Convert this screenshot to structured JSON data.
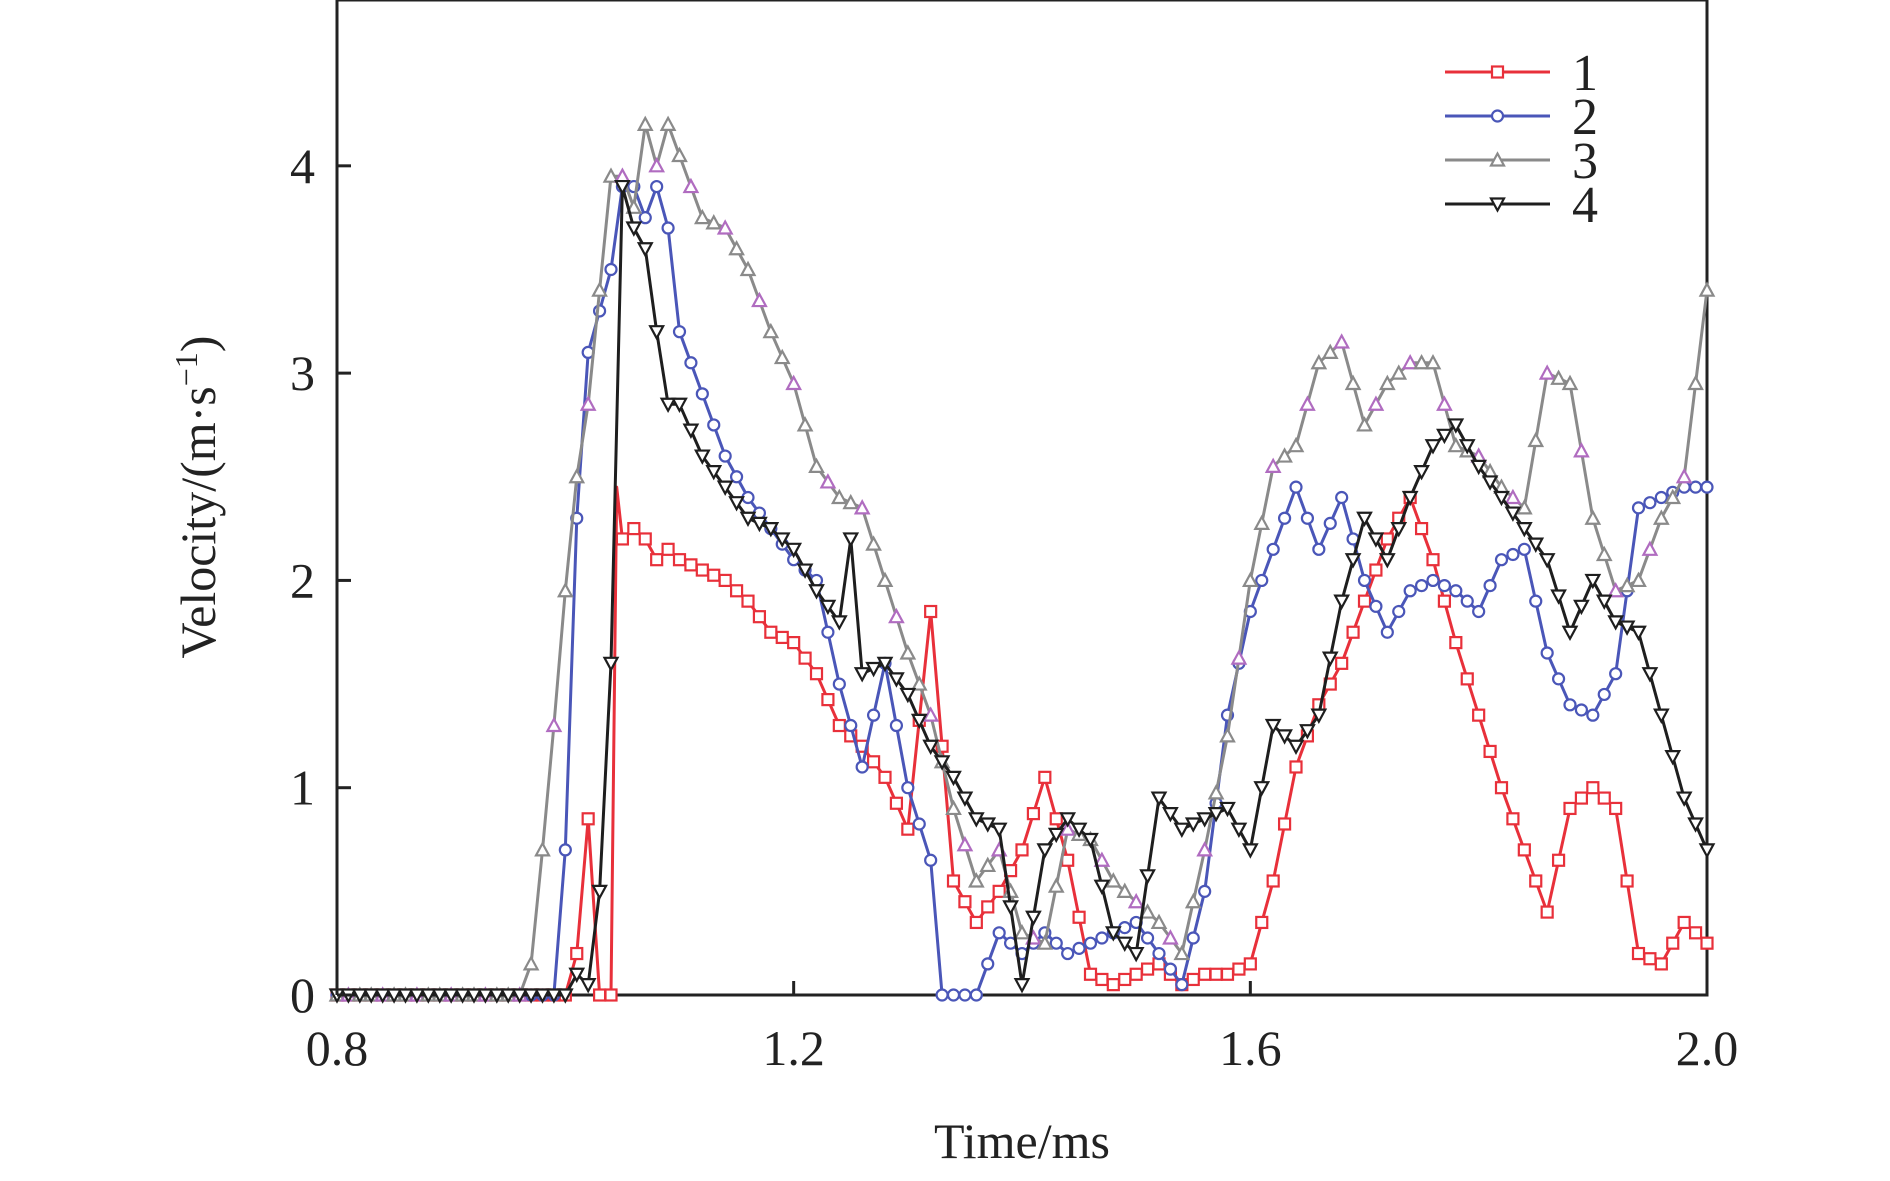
{
  "chart_data": {
    "type": "line",
    "title": "",
    "xlabel": "Time/ms",
    "ylabel_main": "Velocity/(m·s",
    "ylabel_sup": "−1",
    "ylabel_close": ")",
    "xlim": [
      0.8,
      2.0
    ],
    "ylim": [
      0,
      4.8
    ],
    "xticks": [
      0.8,
      1.2,
      1.6,
      2.0
    ],
    "xtick_labels": [
      "0.8",
      "1.2",
      "1.6",
      "2.0"
    ],
    "yticks": [
      0,
      1,
      2,
      3,
      4
    ],
    "ytick_labels": [
      "0",
      "1",
      "2",
      "3",
      "4"
    ],
    "grid": false,
    "legend_position": "top-right",
    "series": [
      {
        "name": "1",
        "color": "#e8303a",
        "marker": "square",
        "x": [
          0.8,
          1.0,
          1.01,
          1.02,
          1.03,
          1.04,
          1.045,
          1.05,
          1.06,
          1.07,
          1.08,
          1.09,
          1.1,
          1.12,
          1.14,
          1.16,
          1.18,
          1.2,
          1.22,
          1.24,
          1.26,
          1.28,
          1.3,
          1.32,
          1.34,
          1.36,
          1.38,
          1.4,
          1.42,
          1.44,
          1.46,
          1.48,
          1.5,
          1.52,
          1.54,
          1.56,
          1.58,
          1.6,
          1.62,
          1.64,
          1.66,
          1.68,
          1.7,
          1.72,
          1.74,
          1.76,
          1.78,
          1.8,
          1.82,
          1.84,
          1.86,
          1.88,
          1.9,
          1.92,
          1.94,
          1.96,
          1.98,
          2.0
        ],
        "y": [
          0,
          0,
          0.2,
          0.85,
          0,
          0,
          2.45,
          2.2,
          2.25,
          2.2,
          2.1,
          2.15,
          2.1,
          2.05,
          2.0,
          1.9,
          1.75,
          1.7,
          1.55,
          1.3,
          1.2,
          1.05,
          0.8,
          1.85,
          0.55,
          0.35,
          0.5,
          0.7,
          1.05,
          0.65,
          0.1,
          0.05,
          0.1,
          0.15,
          0.05,
          0.1,
          0.1,
          0.15,
          0.55,
          1.1,
          1.4,
          1.6,
          1.9,
          2.2,
          2.4,
          2.1,
          1.7,
          1.35,
          1.0,
          0.7,
          0.4,
          0.9,
          1.0,
          0.9,
          0.2,
          0.15,
          0.35,
          0.25
        ]
      },
      {
        "name": "2",
        "color": "#4a56b8",
        "marker": "circle",
        "x": [
          0.8,
          0.98,
          0.99,
          1.0,
          1.01,
          1.02,
          1.03,
          1.04,
          1.05,
          1.06,
          1.07,
          1.08,
          1.09,
          1.1,
          1.12,
          1.14,
          1.16,
          1.18,
          1.2,
          1.22,
          1.24,
          1.26,
          1.28,
          1.3,
          1.32,
          1.33,
          1.34,
          1.36,
          1.38,
          1.4,
          1.42,
          1.44,
          1.46,
          1.48,
          1.5,
          1.52,
          1.54,
          1.56,
          1.58,
          1.6,
          1.62,
          1.64,
          1.66,
          1.68,
          1.7,
          1.72,
          1.74,
          1.76,
          1.78,
          1.8,
          1.82,
          1.84,
          1.86,
          1.88,
          1.9,
          1.92,
          1.94,
          1.96,
          1.98,
          2.0
        ],
        "y": [
          0,
          0,
          0,
          0.7,
          2.3,
          3.1,
          3.3,
          3.5,
          3.9,
          3.9,
          3.75,
          3.9,
          3.7,
          3.2,
          2.9,
          2.6,
          2.4,
          2.25,
          2.1,
          2.0,
          1.5,
          1.1,
          1.6,
          1.0,
          0.65,
          0,
          0,
          0,
          0.3,
          0.2,
          0.3,
          0.2,
          0.25,
          0.3,
          0.35,
          0.2,
          0.05,
          0.5,
          1.35,
          1.85,
          2.15,
          2.45,
          2.15,
          2.4,
          2.0,
          1.75,
          1.95,
          2.0,
          1.95,
          1.85,
          2.1,
          2.15,
          1.65,
          1.4,
          1.35,
          1.55,
          2.35,
          2.4,
          2.45,
          2.45
        ]
      },
      {
        "name": "3",
        "color": "#8a8a8a",
        "accent_color": "#b06cc0",
        "marker": "triangle-up",
        "x": [
          0.8,
          0.96,
          0.97,
          0.98,
          0.99,
          1.0,
          1.01,
          1.02,
          1.03,
          1.04,
          1.05,
          1.06,
          1.07,
          1.08,
          1.09,
          1.1,
          1.12,
          1.14,
          1.16,
          1.18,
          1.2,
          1.22,
          1.24,
          1.26,
          1.28,
          1.3,
          1.32,
          1.34,
          1.36,
          1.38,
          1.4,
          1.42,
          1.44,
          1.46,
          1.48,
          1.5,
          1.52,
          1.54,
          1.56,
          1.58,
          1.6,
          1.62,
          1.64,
          1.66,
          1.68,
          1.7,
          1.72,
          1.74,
          1.76,
          1.78,
          1.8,
          1.82,
          1.84,
          1.86,
          1.88,
          1.9,
          1.92,
          1.94,
          1.96,
          1.98,
          2.0
        ],
        "y": [
          0,
          0,
          0.15,
          0.7,
          1.3,
          1.95,
          2.5,
          2.85,
          3.4,
          3.95,
          3.95,
          3.8,
          4.2,
          4.0,
          4.2,
          4.05,
          3.75,
          3.7,
          3.5,
          3.2,
          2.95,
          2.55,
          2.4,
          2.35,
          2.0,
          1.65,
          1.35,
          0.9,
          0.55,
          0.7,
          0.3,
          0.25,
          0.8,
          0.75,
          0.55,
          0.45,
          0.35,
          0.2,
          0.7,
          1.25,
          2.0,
          2.55,
          2.65,
          3.05,
          3.15,
          2.75,
          2.95,
          3.05,
          3.05,
          2.65,
          2.6,
          2.45,
          2.35,
          3.0,
          2.95,
          2.3,
          1.95,
          2.0,
          2.3,
          2.5,
          3.4
        ]
      },
      {
        "name": "4",
        "color": "#1e1e1e",
        "marker": "triangle-down",
        "x": [
          0.8,
          1.0,
          1.01,
          1.02,
          1.03,
          1.04,
          1.05,
          1.06,
          1.07,
          1.08,
          1.09,
          1.1,
          1.12,
          1.14,
          1.16,
          1.18,
          1.2,
          1.22,
          1.24,
          1.25,
          1.26,
          1.28,
          1.3,
          1.32,
          1.34,
          1.36,
          1.38,
          1.4,
          1.42,
          1.44,
          1.46,
          1.48,
          1.5,
          1.52,
          1.54,
          1.56,
          1.58,
          1.6,
          1.62,
          1.64,
          1.66,
          1.68,
          1.7,
          1.72,
          1.74,
          1.76,
          1.78,
          1.8,
          1.82,
          1.84,
          1.86,
          1.88,
          1.9,
          1.92,
          1.94,
          1.96,
          1.98,
          2.0
        ],
        "y": [
          0,
          0,
          0.1,
          0.05,
          0.5,
          1.6,
          3.9,
          3.7,
          3.6,
          3.2,
          2.85,
          2.85,
          2.6,
          2.45,
          2.3,
          2.25,
          2.15,
          1.95,
          1.8,
          2.2,
          1.55,
          1.6,
          1.45,
          1.2,
          1.05,
          0.85,
          0.8,
          0.05,
          0.7,
          0.85,
          0.75,
          0.3,
          0.2,
          0.95,
          0.8,
          0.85,
          0.9,
          0.7,
          1.3,
          1.2,
          1.35,
          1.9,
          2.3,
          2.1,
          2.4,
          2.65,
          2.75,
          2.55,
          2.4,
          2.25,
          2.1,
          1.75,
          2.0,
          1.8,
          1.75,
          1.35,
          0.95,
          0.7
        ]
      }
    ]
  }
}
